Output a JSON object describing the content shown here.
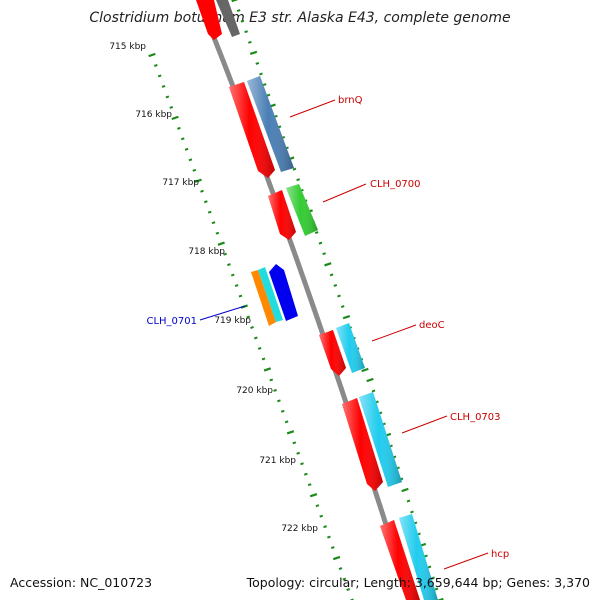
{
  "title": "Clostridium botulinum E3 str. Alaska E43, complete genome",
  "footer": {
    "accession": "Accession: NC_010723",
    "info": "Topology: circular; Length: 3,659,644 bp; Genes: 3,370"
  },
  "ticks": [
    "715 kbp",
    "716 kbp",
    "717 kbp",
    "718 kbp",
    "719 kbp",
    "720 kbp",
    "721 kbp",
    "722 kbp"
  ],
  "gene_labels": [
    {
      "text": "brnQ",
      "color": "#cc0000"
    },
    {
      "text": "CLH_0700",
      "color": "#cc0000"
    },
    {
      "text": "CLH_0701",
      "color": "#0000cc"
    },
    {
      "text": "deoC",
      "color": "#cc0000"
    },
    {
      "text": "CLH_0703",
      "color": "#cc0000"
    },
    {
      "text": "hcp",
      "color": "#cc0000"
    }
  ],
  "colors": {
    "backbone": "#8a8a8a",
    "tick": "#1a8a1a",
    "cds": "#ff0000",
    "gene_blue": "#4a7fb5",
    "gene_green": "#33cc33",
    "gene_cyan": "#22ccee",
    "gene_orange": "#ff8800",
    "gene_teal": "#22dddd",
    "gene_darkblue": "#0000ee",
    "gene_gray": "#666666"
  }
}
